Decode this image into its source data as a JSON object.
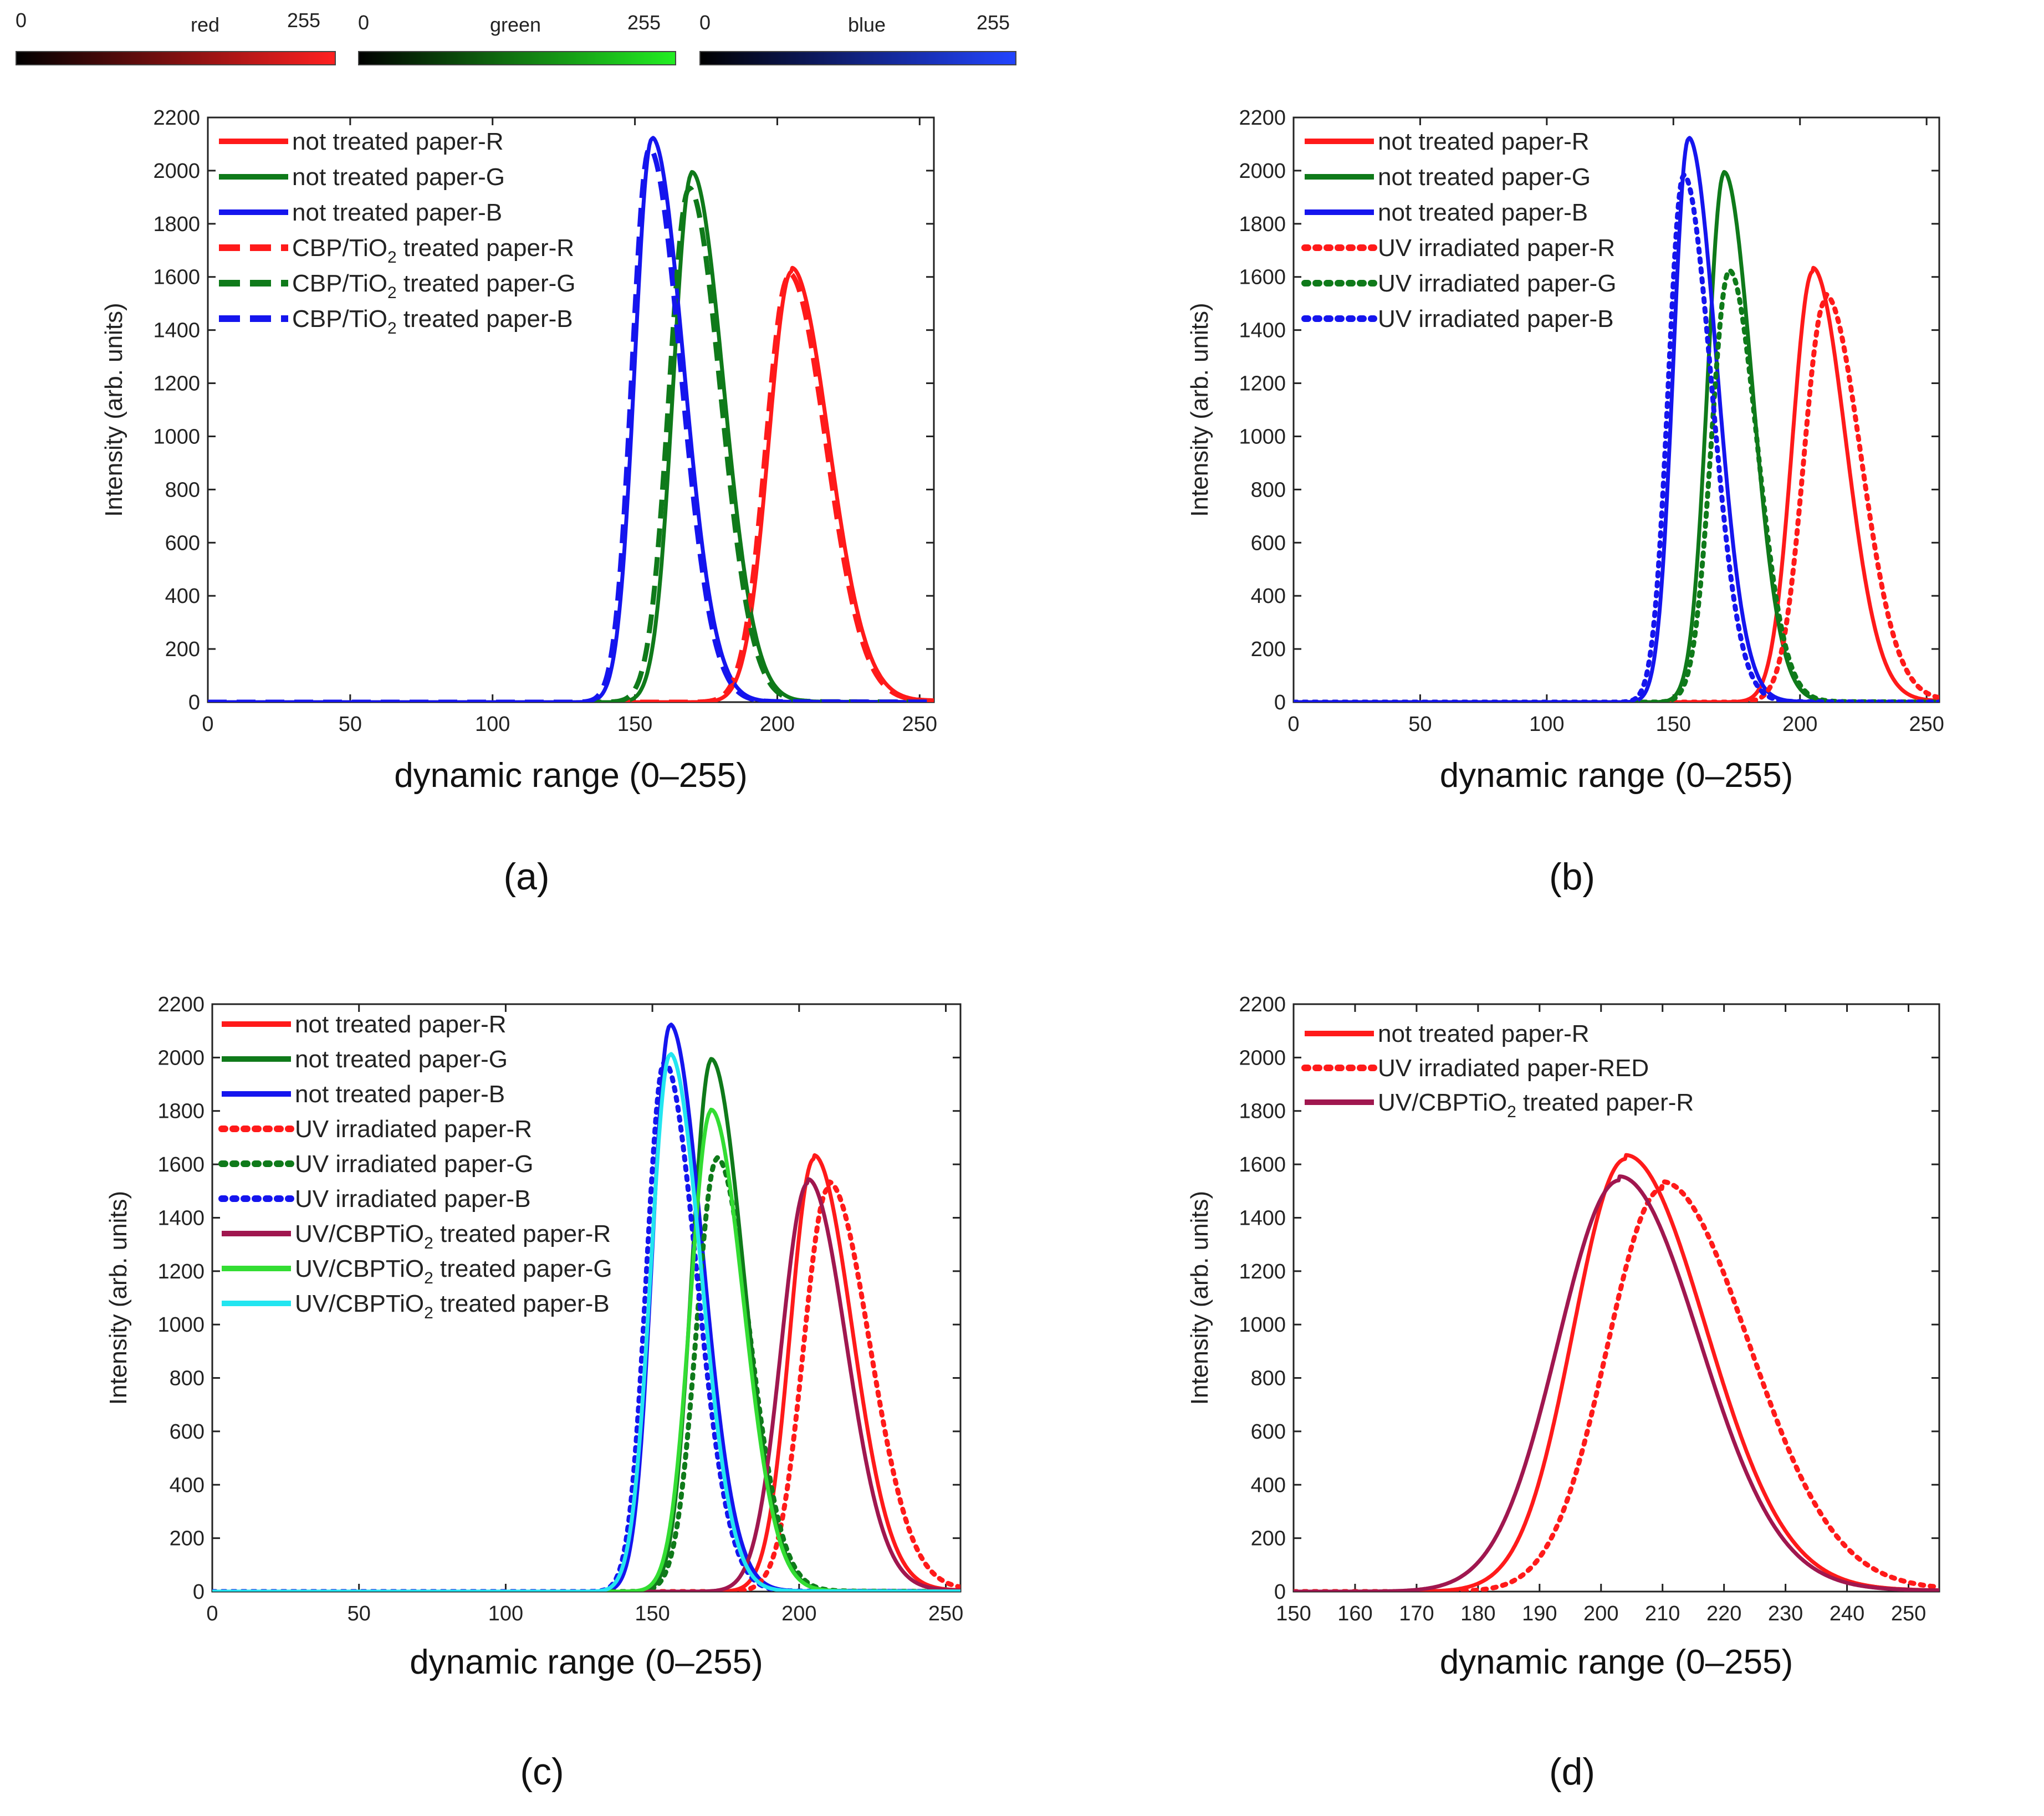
{
  "colorbars": [
    {
      "min": "0",
      "name": "red",
      "max": "255",
      "color": "#ff2020"
    },
    {
      "min": "0",
      "name": "green",
      "max": "255",
      "color": "#22ee22"
    },
    {
      "min": "0",
      "name": "blue",
      "max": "255",
      "color": "#2244ff"
    }
  ],
  "chart_data": [
    {
      "type": "line",
      "caption": "(a)",
      "xlabel": "dynamic range (0–255)",
      "ylabel": "Intensity (arb. units)",
      "xlim": [
        0,
        255
      ],
      "ylim": [
        0,
        2200
      ],
      "xticks": [
        0,
        50,
        100,
        150,
        200,
        250
      ],
      "yticks": [
        0,
        200,
        400,
        600,
        800,
        1000,
        1200,
        1400,
        1600,
        1800,
        2000,
        2200
      ],
      "legend_position": "top-left",
      "series": [
        {
          "name": "not treated paper-R",
          "color": "#ff1a1a",
          "style": "solid",
          "peak_x": 205,
          "peak_y": 1620,
          "sigma_left": 8,
          "sigma_right": 13,
          "tail": 15
        },
        {
          "name": "not treated paper-G",
          "color": "#0f7a1a",
          "style": "solid",
          "peak_x": 170,
          "peak_y": 1990,
          "sigma_left": 6.5,
          "sigma_right": 11,
          "tail": 5
        },
        {
          "name": "not treated paper-B",
          "color": "#1515ee",
          "style": "solid",
          "peak_x": 156,
          "peak_y": 2120,
          "sigma_left": 6,
          "sigma_right": 11,
          "tail": 5
        },
        {
          "name": "CBP/TiO2 treated paper-R",
          "label_main": "CBP/TiO",
          "label_sub": "2",
          "label_rest": " treated paper-R",
          "color": "#ff1a1a",
          "style": "dashed",
          "peak_x": 204,
          "peak_y": 1600,
          "sigma_left": 8,
          "sigma_right": 13,
          "tail": 15
        },
        {
          "name": "CBP/TiO2 treated paper-G",
          "label_main": "CBP/TiO",
          "label_sub": "2",
          "label_rest": " treated paper-G",
          "color": "#0f7a1a",
          "style": "dashed",
          "peak_x": 169,
          "peak_y": 1930,
          "sigma_left": 7,
          "sigma_right": 11,
          "tail": 5
        },
        {
          "name": "CBP/TiO2 treated paper-B",
          "label_main": "CBP/TiO",
          "label_sub": "2",
          "label_rest": " treated paper-B",
          "color": "#1515ee",
          "style": "dashed",
          "peak_x": 155,
          "peak_y": 2080,
          "sigma_left": 6,
          "sigma_right": 11,
          "tail": 5
        }
      ]
    },
    {
      "type": "line",
      "caption": "(b)",
      "xlabel": "dynamic range (0–255)",
      "ylabel": "Intensity (arb. units)",
      "xlim": [
        0,
        255
      ],
      "ylim": [
        0,
        2200
      ],
      "xticks": [
        0,
        50,
        100,
        150,
        200,
        250
      ],
      "yticks": [
        0,
        200,
        400,
        600,
        800,
        1000,
        1200,
        1400,
        1600,
        1800,
        2000,
        2200
      ],
      "legend_position": "top-left",
      "series": [
        {
          "name": "not treated paper-R",
          "color": "#ff1a1a",
          "style": "solid",
          "peak_x": 205,
          "peak_y": 1620,
          "sigma_left": 8,
          "sigma_right": 13,
          "tail": 15
        },
        {
          "name": "not treated paper-G",
          "color": "#0f7a1a",
          "style": "solid",
          "peak_x": 170,
          "peak_y": 1990,
          "sigma_left": 6.5,
          "sigma_right": 11,
          "tail": 5
        },
        {
          "name": "not treated paper-B",
          "color": "#1515ee",
          "style": "solid",
          "peak_x": 156,
          "peak_y": 2120,
          "sigma_left": 6,
          "sigma_right": 11,
          "tail": 5
        },
        {
          "name": "UV irradiated paper-R",
          "color": "#ff1a1a",
          "style": "dotted",
          "peak_x": 210,
          "peak_y": 1510,
          "sigma_left": 8.5,
          "sigma_right": 14,
          "tail": 25
        },
        {
          "name": "UV irradiated paper-G",
          "color": "#0f7a1a",
          "style": "dotted",
          "peak_x": 172,
          "peak_y": 1620,
          "sigma_left": 7,
          "sigma_right": 11,
          "tail": 5
        },
        {
          "name": "UV irradiated paper-B",
          "color": "#1515ee",
          "style": "dotted",
          "peak_x": 154,
          "peak_y": 1980,
          "sigma_left": 6,
          "sigma_right": 11,
          "tail": 5
        }
      ]
    },
    {
      "type": "line",
      "caption": "(c)",
      "xlabel": "dynamic range (0–255)",
      "ylabel": "Intensity (arb. units)",
      "xlim": [
        0,
        255
      ],
      "ylim": [
        0,
        2200
      ],
      "xticks": [
        0,
        50,
        100,
        150,
        200,
        250
      ],
      "yticks": [
        0,
        200,
        400,
        600,
        800,
        1000,
        1200,
        1400,
        1600,
        1800,
        2000,
        2200
      ],
      "legend_position": "top-left",
      "series": [
        {
          "name": "not treated paper-R",
          "color": "#ff1a1a",
          "style": "solid",
          "peak_x": 205,
          "peak_y": 1620,
          "sigma_left": 8,
          "sigma_right": 13,
          "tail": 15
        },
        {
          "name": "not treated paper-G",
          "color": "#0f7a1a",
          "style": "solid",
          "peak_x": 170,
          "peak_y": 1990,
          "sigma_left": 6.5,
          "sigma_right": 11,
          "tail": 5
        },
        {
          "name": "not treated paper-B",
          "color": "#1515ee",
          "style": "solid",
          "peak_x": 156,
          "peak_y": 2120,
          "sigma_left": 6,
          "sigma_right": 11,
          "tail": 5
        },
        {
          "name": "UV irradiated paper-R",
          "color": "#ff1a1a",
          "style": "dotted",
          "peak_x": 210,
          "peak_y": 1510,
          "sigma_left": 8.5,
          "sigma_right": 14,
          "tail": 25
        },
        {
          "name": "UV irradiated paper-G",
          "color": "#0f7a1a",
          "style": "dotted",
          "peak_x": 172,
          "peak_y": 1620,
          "sigma_left": 7,
          "sigma_right": 11,
          "tail": 5
        },
        {
          "name": "UV irradiated paper-B",
          "color": "#1515ee",
          "style": "dotted",
          "peak_x": 154,
          "peak_y": 1980,
          "sigma_left": 6,
          "sigma_right": 11,
          "tail": 5
        },
        {
          "name": "UV/CBPTiO2 treated paper-R",
          "label_main": "UV/CBPTiO",
          "label_sub": "2",
          "label_rest": " treated paper-R",
          "color": "#a0174f",
          "style": "solid",
          "peak_x": 203,
          "peak_y": 1530,
          "sigma_left": 9,
          "sigma_right": 13,
          "tail": 15
        },
        {
          "name": "UV/CBPTiO2 treated paper-G",
          "label_main": "UV/CBPTiO",
          "label_sub": "2",
          "label_rest": " treated paper-G",
          "color": "#33dd33",
          "style": "solid",
          "peak_x": 170,
          "peak_y": 1800,
          "sigma_left": 7,
          "sigma_right": 11,
          "tail": 5
        },
        {
          "name": "UV/CBPTiO2 treated paper-B",
          "label_main": "UV/CBPTiO",
          "label_sub": "2",
          "label_rest": " treated paper-B",
          "color": "#22e5f0",
          "style": "solid",
          "peak_x": 156,
          "peak_y": 2010,
          "sigma_left": 6.5,
          "sigma_right": 10.5,
          "tail": 5
        }
      ]
    },
    {
      "type": "line",
      "caption": "(d)",
      "xlabel": "dynamic range (0–255)",
      "ylabel": "Intensity (arb. units)",
      "xlim": [
        150,
        255
      ],
      "ylim": [
        0,
        2200
      ],
      "xticks": [
        150,
        160,
        170,
        180,
        190,
        200,
        210,
        220,
        230,
        240,
        250
      ],
      "yticks": [
        0,
        200,
        400,
        600,
        800,
        1000,
        1200,
        1400,
        1600,
        1800,
        2000,
        2200
      ],
      "legend_position": "top-left",
      "series": [
        {
          "name": "not treated paper-R",
          "color": "#ff1a1a",
          "style": "solid",
          "peak_x": 204,
          "peak_y": 1620,
          "sigma_left": 8.5,
          "sigma_right": 13,
          "tail": 15
        },
        {
          "name": "UV irradiated paper-RED",
          "color": "#ff1a1a",
          "style": "dotted",
          "peak_x": 210,
          "peak_y": 1510,
          "sigma_left": 9,
          "sigma_right": 14,
          "tail": 25
        },
        {
          "name": "UV/CBPTiO2 treated paper-R",
          "label_main": "UV/CBPTiO",
          "label_sub": "2",
          "label_rest": " treated paper-R",
          "color": "#a0174f",
          "style": "solid",
          "peak_x": 203,
          "peak_y": 1540,
          "sigma_left": 10,
          "sigma_right": 13,
          "tail": 15
        }
      ]
    }
  ]
}
